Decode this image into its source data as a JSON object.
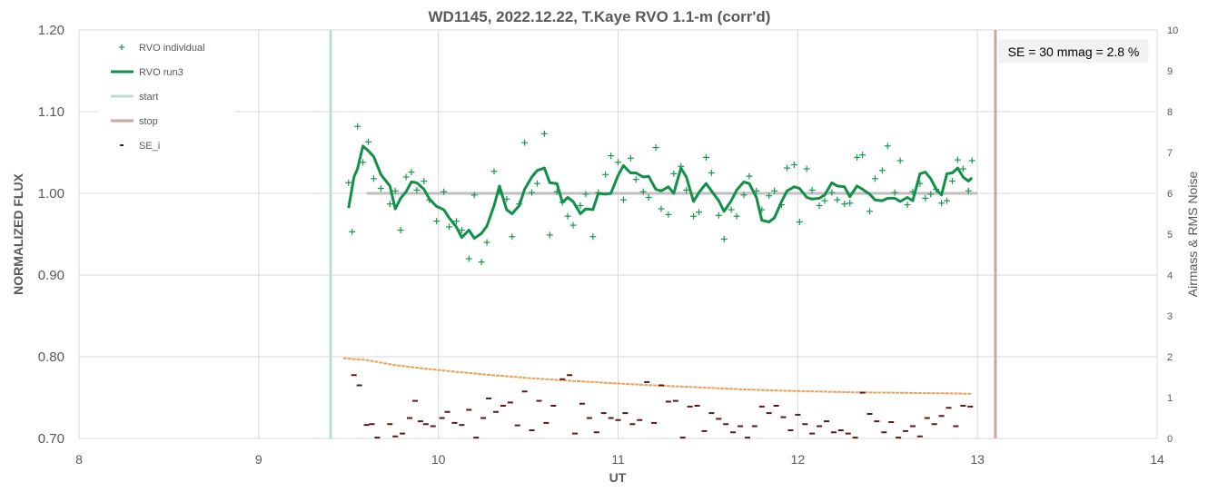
{
  "chart_data": {
    "type": "scatter",
    "title": "WD1145, 2022.12.22, T.Kaye RVO 1.1-m (corr'd)",
    "xlabel": "UT",
    "ylabel": "NORMALIZED FLUX",
    "y2label": "Airmass & RMS Noise",
    "xlim": [
      8,
      14
    ],
    "ylim": [
      0.7,
      1.2
    ],
    "y2lim": [
      0,
      10
    ],
    "x_ticks": [
      "8",
      "9",
      "10",
      "11",
      "12",
      "13",
      "14"
    ],
    "y_ticks": [
      "0.70",
      "0.80",
      "0.90",
      "1.00",
      "1.10",
      "1.20"
    ],
    "y2_ticks": [
      "0",
      "1",
      "2",
      "3",
      "4",
      "5",
      "6",
      "7",
      "8",
      "9",
      "10"
    ],
    "grid": true,
    "legend_position": "top-left",
    "annotation": "SE = 30 mmag = 2.8 %",
    "reference_line": {
      "x": [
        9.6,
        13.0
      ],
      "y": 1.0,
      "color": "#bfbfbf"
    },
    "start_x": 9.4,
    "stop_x": 13.1,
    "colors": {
      "individual": "#1a9850",
      "run3": "#11904a",
      "start": "#b8e0cc",
      "stop": "#c9a6a0",
      "se": "#5a1a1a",
      "airmass": "#e8a15a"
    },
    "series": [
      {
        "name": "RVO individual",
        "marker": "plus",
        "x": [
          9.5,
          9.52,
          9.55,
          9.58,
          9.61,
          9.64,
          9.68,
          9.73,
          9.76,
          9.79,
          9.82,
          9.85,
          9.88,
          9.92,
          9.95,
          9.99,
          10.03,
          10.06,
          10.1,
          10.13,
          10.17,
          10.2,
          10.24,
          10.27,
          10.31,
          10.34,
          10.38,
          10.41,
          10.45,
          10.48,
          10.52,
          10.55,
          10.59,
          10.62,
          10.66,
          10.69,
          10.72,
          10.75,
          10.79,
          10.82,
          10.86,
          10.89,
          10.93,
          10.96,
          11.0,
          11.03,
          11.07,
          11.1,
          11.14,
          11.17,
          11.21,
          11.24,
          11.28,
          11.31,
          11.35,
          11.38,
          11.42,
          11.45,
          11.49,
          11.52,
          11.56,
          11.59,
          11.63,
          11.66,
          11.7,
          11.73,
          11.77,
          11.8,
          11.84,
          11.87,
          11.91,
          11.94,
          11.98,
          12.01,
          12.05,
          12.08,
          12.12,
          12.15,
          12.19,
          12.22,
          12.26,
          12.29,
          12.33,
          12.36,
          12.4,
          12.43,
          12.47,
          12.5,
          12.54,
          12.57,
          12.61,
          12.64,
          12.68,
          12.71,
          12.74,
          12.77,
          12.8,
          12.83,
          12.86,
          12.89,
          12.92,
          12.95,
          12.97
        ],
        "y": [
          1.013,
          0.953,
          1.082,
          1.038,
          1.063,
          1.018,
          1.006,
          0.987,
          1.003,
          0.955,
          1.02,
          1.026,
          1.004,
          1.015,
          0.992,
          0.966,
          1.002,
          0.959,
          0.966,
          0.955,
          0.92,
          0.998,
          0.916,
          0.94,
          1.027,
          1.002,
          0.993,
          0.947,
          0.987,
          1.062,
          1.001,
          1.012,
          1.073,
          0.949,
          1.002,
          0.989,
          0.972,
          0.961,
          0.985,
          0.999,
          0.947,
          1.001,
          1.023,
          1.046,
          1.038,
          0.992,
          1.043,
          1.017,
          1.002,
          0.995,
          1.056,
          0.981,
          0.974,
          1.024,
          1.033,
          1.004,
          0.972,
          0.977,
          1.044,
          1.025,
          0.973,
          0.944,
          0.98,
          0.972,
          0.998,
          1.021,
          1.003,
          0.98,
          0.997,
          1.003,
          0.986,
          1.031,
          1.035,
          0.965,
          1.03,
          1.004,
          0.985,
          0.991,
          1.001,
          0.992,
          0.987,
          0.988,
          1.044,
          1.047,
          0.978,
          1.018,
          1.028,
          1.058,
          1.001,
          1.04,
          0.986,
          1.002,
          1.012,
          0.994,
          0.999,
          1.005,
          0.988,
          0.991,
          1.015,
          1.041,
          1.03,
          1.003,
          1.04
        ]
      },
      {
        "name": "RVO run3",
        "marker": "line",
        "x": [
          9.5,
          9.53,
          9.55,
          9.58,
          9.61,
          9.64,
          9.68,
          9.73,
          9.76,
          9.79,
          9.82,
          9.85,
          9.88,
          9.92,
          9.95,
          9.99,
          10.03,
          10.06,
          10.1,
          10.13,
          10.17,
          10.2,
          10.24,
          10.27,
          10.31,
          10.34,
          10.38,
          10.41,
          10.45,
          10.48,
          10.52,
          10.55,
          10.59,
          10.62,
          10.66,
          10.69,
          10.72,
          10.75,
          10.79,
          10.82,
          10.86,
          10.89,
          10.93,
          10.96,
          11.0,
          11.03,
          11.07,
          11.1,
          11.14,
          11.17,
          11.21,
          11.24,
          11.28,
          11.31,
          11.35,
          11.38,
          11.42,
          11.45,
          11.49,
          11.52,
          11.56,
          11.59,
          11.63,
          11.66,
          11.7,
          11.73,
          11.77,
          11.8,
          11.84,
          11.87,
          11.91,
          11.94,
          11.98,
          12.01,
          12.05,
          12.08,
          12.12,
          12.15,
          12.19,
          12.22,
          12.26,
          12.29,
          12.33,
          12.36,
          12.4,
          12.43,
          12.47,
          12.5,
          12.54,
          12.57,
          12.61,
          12.64,
          12.68,
          12.71,
          12.74,
          12.77,
          12.8,
          12.83,
          12.86,
          12.89,
          12.92,
          12.95,
          12.97
        ],
        "y": [
          0.982,
          1.02,
          1.03,
          1.058,
          1.052,
          1.045,
          1.023,
          1.009,
          0.981,
          0.994,
          1.002,
          1.014,
          1.013,
          1.005,
          0.993,
          0.984,
          0.98,
          0.97,
          0.959,
          0.946,
          0.955,
          0.945,
          0.951,
          0.96,
          0.985,
          1.009,
          0.98,
          0.975,
          0.985,
          1.005,
          1.02,
          1.028,
          1.031,
          1.013,
          1.012,
          0.989,
          0.995,
          0.99,
          0.975,
          0.981,
          0.98,
          1.0,
          0.999,
          1.0,
          1.022,
          1.034,
          1.025,
          1.025,
          1.02,
          1.021,
          1.005,
          1.003,
          1.008,
          1.0,
          1.031,
          1.02,
          0.99,
          1.001,
          1.012,
          1.003,
          0.991,
          0.978,
          0.991,
          1.004,
          1.014,
          1.012,
          0.995,
          0.967,
          0.965,
          0.97,
          0.99,
          1.003,
          1.008,
          1.006,
          0.995,
          0.993,
          0.994,
          0.998,
          1.013,
          1.009,
          1.008,
          0.996,
          1.009,
          1.005,
          0.999,
          0.992,
          0.991,
          0.994,
          0.994,
          0.99,
          0.995,
          0.991,
          1.024,
          1.026,
          1.018,
          1.005,
          0.998,
          1.024,
          1.025,
          1.031,
          1.02,
          1.015,
          1.019
        ]
      },
      {
        "name": "start",
        "marker": "vline",
        "x": [
          9.4
        ]
      },
      {
        "name": "stop",
        "marker": "vline",
        "x": [
          13.1
        ]
      },
      {
        "name": "SE_i",
        "marker": "dash",
        "axis": "y2",
        "x": [
          9.53,
          9.56,
          9.6,
          9.63,
          9.66,
          9.73,
          9.76,
          9.8,
          9.84,
          9.87,
          9.9,
          9.93,
          9.97,
          10.02,
          10.05,
          10.09,
          10.13,
          10.17,
          10.21,
          10.25,
          10.28,
          10.32,
          10.36,
          10.4,
          10.44,
          10.48,
          10.52,
          10.56,
          10.6,
          10.64,
          10.69,
          10.73,
          10.76,
          10.8,
          10.84,
          10.88,
          10.92,
          10.96,
          11.0,
          11.04,
          11.08,
          11.12,
          11.16,
          11.2,
          11.24,
          11.28,
          11.32,
          11.36,
          11.4,
          11.44,
          11.48,
          11.52,
          11.56,
          11.6,
          11.64,
          11.68,
          11.72,
          11.76,
          11.8,
          11.84,
          11.88,
          11.92,
          11.96,
          12.0,
          12.04,
          12.08,
          12.12,
          12.16,
          12.2,
          12.24,
          12.28,
          12.32,
          12.36,
          12.4,
          12.44,
          12.48,
          12.52,
          12.56,
          12.6,
          12.64,
          12.68,
          12.72,
          12.76,
          12.8,
          12.84,
          12.88,
          12.92,
          12.96
        ],
        "y": [
          1.55,
          1.3,
          0.33,
          0.35,
          0.02,
          0.35,
          0.05,
          0.12,
          0.5,
          0.92,
          0.42,
          0.35,
          0.3,
          0.5,
          0.65,
          0.38,
          0.33,
          0.7,
          0.02,
          0.5,
          0.98,
          0.65,
          0.8,
          0.88,
          0.32,
          1.15,
          0.2,
          0.92,
          0.38,
          0.8,
          1.45,
          1.55,
          0.12,
          0.85,
          0.5,
          0.15,
          0.62,
          0.5,
          0.45,
          0.62,
          0.35,
          0.45,
          1.38,
          0.38,
          1.3,
          0.9,
          0.92,
          0.02,
          0.78,
          0.8,
          0.18,
          0.62,
          0.48,
          0.35,
          0.15,
          0.3,
          0.02,
          0.3,
          0.78,
          0.62,
          0.8,
          0.52,
          0.2,
          0.58,
          0.35,
          0.12,
          0.3,
          0.42,
          0.15,
          0.2,
          0.12,
          0.02,
          1.12,
          0.6,
          0.42,
          0.15,
          0.4,
          0.02,
          0.18,
          0.3,
          0.05,
          0.5,
          0.35,
          0.55,
          0.75,
          0.3,
          0.8,
          0.78
        ]
      },
      {
        "name": "airmass",
        "marker": "dots",
        "axis": "y2",
        "x": [
          9.48,
          9.6,
          9.75,
          9.9,
          10.1,
          10.3,
          10.5,
          10.7,
          10.9,
          11.1,
          11.3,
          11.5,
          11.7,
          11.9,
          12.1,
          12.3,
          12.5,
          12.7,
          12.9,
          12.98
        ],
        "y": [
          1.96,
          1.92,
          1.8,
          1.72,
          1.63,
          1.55,
          1.48,
          1.42,
          1.37,
          1.32,
          1.28,
          1.24,
          1.2,
          1.17,
          1.15,
          1.13,
          1.12,
          1.11,
          1.1,
          1.09
        ]
      }
    ]
  }
}
